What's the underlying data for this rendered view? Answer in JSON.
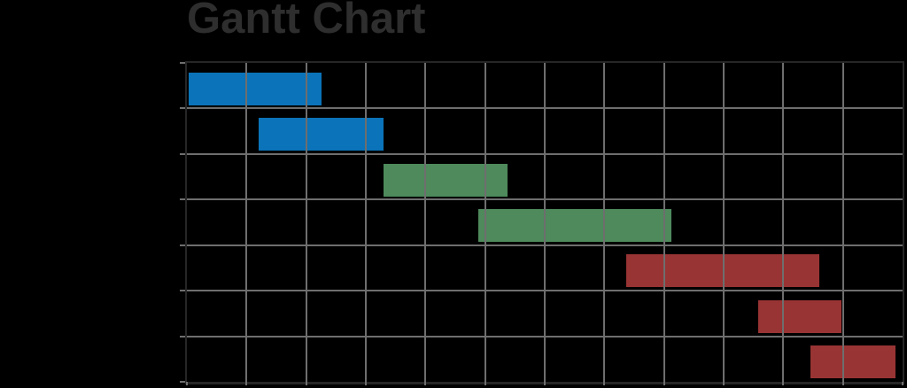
{
  "page": {
    "background_color": "#000000"
  },
  "chart": {
    "title": "Gantt Chart",
    "title_color": "#2e2e2e"
  },
  "chart_data": {
    "type": "gantt",
    "title": "Gantt Chart",
    "xlabel": "",
    "ylabel": "",
    "x_range": [
      0,
      12
    ],
    "x_gridline_step": 1,
    "row_count": 7,
    "grid": true,
    "grid_on_top_of_bars": true,
    "grid_color": "#6e6e6e",
    "spine_color": "#262626",
    "tick_color": "#6e6e6e",
    "legend": "none",
    "palette": {
      "blue": "#0b73b9",
      "green": "#4e8a5c",
      "red": "#993434"
    },
    "bars": [
      {
        "row": 0,
        "start": 0.03,
        "end": 2.26,
        "color": "#0b73b9"
      },
      {
        "row": 1,
        "start": 1.2,
        "end": 3.3,
        "color": "#0b73b9"
      },
      {
        "row": 2,
        "start": 3.3,
        "end": 5.38,
        "color": "#4e8a5c"
      },
      {
        "row": 3,
        "start": 4.89,
        "end": 8.13,
        "color": "#4e8a5c"
      },
      {
        "row": 4,
        "start": 7.37,
        "end": 10.61,
        "color": "#993434"
      },
      {
        "row": 5,
        "start": 9.58,
        "end": 10.97,
        "color": "#993434"
      },
      {
        "row": 6,
        "start": 10.45,
        "end": 11.88,
        "color": "#993434"
      }
    ]
  }
}
